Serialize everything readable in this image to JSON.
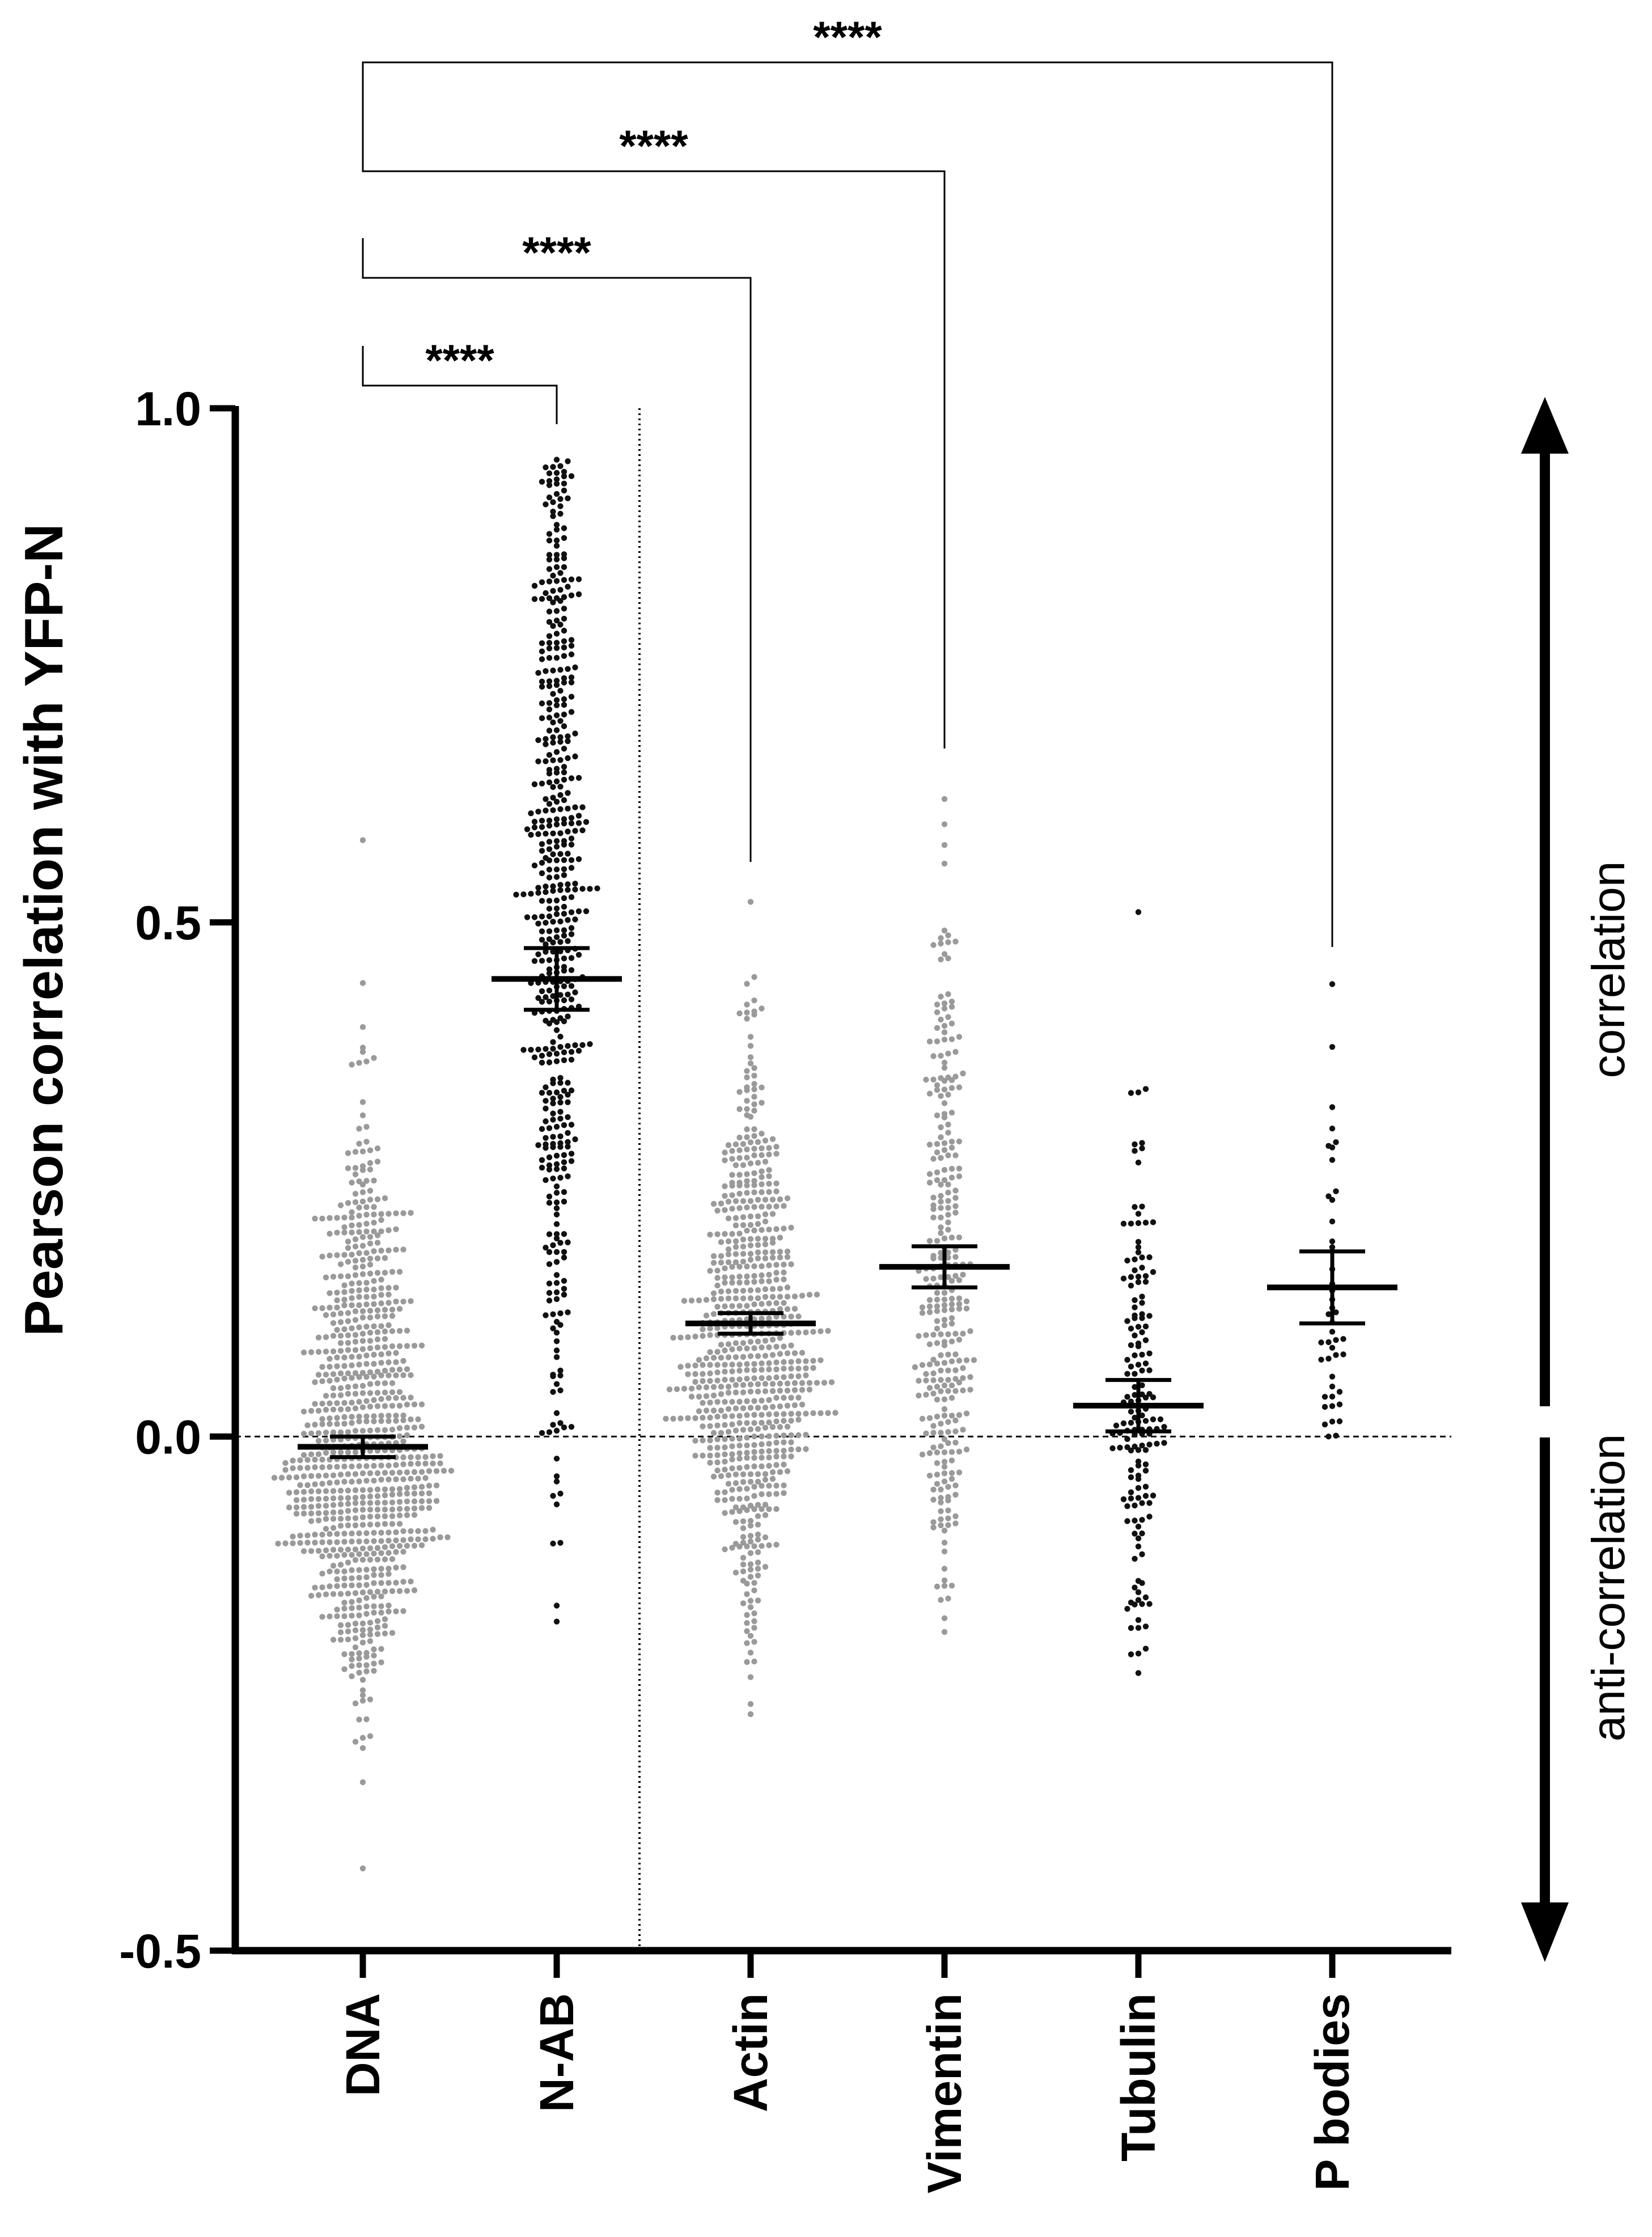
{
  "chart_data": {
    "type": "scatter",
    "subtype": "dot-plot with mean and error bars",
    "ylabel": "Pearson correlation with YFP-N",
    "ylim": [
      -0.5,
      1.0
    ],
    "yticks": [
      {
        "value": 1.0,
        "label": "1.0"
      },
      {
        "value": 0.5,
        "label": "0.5"
      },
      {
        "value": 0.0,
        "label": "0.0"
      },
      {
        "value": -0.5,
        "label": "-0.5"
      }
    ],
    "reference_line": {
      "value": 0.0,
      "style": "dashed"
    },
    "group_separator": {
      "after_category_index": 1,
      "style": "dotted"
    },
    "categories": [
      "DNA",
      "N-AB",
      "Actin",
      "Vimentin",
      "Tubulin",
      "P bodies"
    ],
    "series": [
      {
        "name": "DNA",
        "color": "#9a9a9a",
        "n": 820,
        "mean": -0.01,
        "err_low": -0.02,
        "err_high": 0.0,
        "min": -0.42,
        "max": 0.58,
        "center": -0.02,
        "spread": 0.11,
        "skew": 0.5
      },
      {
        "name": "N-AB",
        "color": "#111111",
        "n": 500,
        "mean": 0.445,
        "err_low": 0.415,
        "err_high": 0.475,
        "min": -0.18,
        "max": 0.95,
        "center": 0.55,
        "spread": 0.26,
        "skew": 0.0
      },
      {
        "name": "Actin",
        "color": "#9a9a9a",
        "n": 700,
        "mean": 0.11,
        "err_low": 0.1,
        "err_high": 0.12,
        "min": -0.27,
        "max": 0.52,
        "center": 0.07,
        "spread": 0.11,
        "skew": 0.4
      },
      {
        "name": "Vimentin",
        "color": "#9a9a9a",
        "n": 300,
        "mean": 0.165,
        "err_low": 0.145,
        "err_high": 0.185,
        "min": -0.19,
        "max": 0.62,
        "center": 0.14,
        "spread": 0.14,
        "skew": 0.5
      },
      {
        "name": "Tubulin",
        "color": "#111111",
        "n": 160,
        "mean": 0.03,
        "err_low": 0.005,
        "err_high": 0.055,
        "min": -0.23,
        "max": 0.51,
        "center": 0.02,
        "spread": 0.1,
        "skew": 0.6
      },
      {
        "name": "P bodies",
        "color": "#111111",
        "n": 45,
        "mean": 0.145,
        "err_low": 0.11,
        "err_high": 0.18,
        "min": 0.0,
        "max": 0.44,
        "center": 0.12,
        "spread": 0.09,
        "skew": 0.7
      }
    ],
    "significance": [
      {
        "from": "DNA",
        "to": "N-AB",
        "label": "****"
      },
      {
        "from": "DNA",
        "to": "Actin",
        "label": "****"
      },
      {
        "from": "DNA",
        "to": "Vimentin",
        "label": "****"
      },
      {
        "from": "DNA",
        "to": "P bodies",
        "label": "****"
      }
    ],
    "side_annotations": {
      "upper": "correlation",
      "lower": "anti-correlation"
    }
  }
}
